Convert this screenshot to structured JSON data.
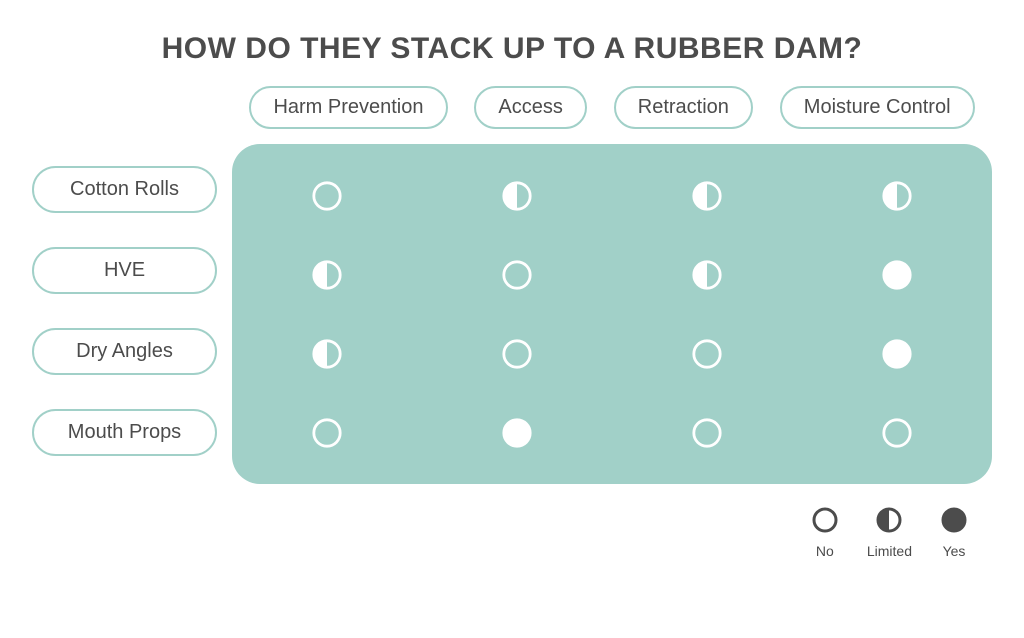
{
  "title": "HOW DO THEY STACK UP TO A RUBBER DAM?",
  "title_color": "#4c4c4c",
  "title_fontsize": 30,
  "comparison": {
    "type": "table",
    "panel_color": "#a1d0c8",
    "panel_radius": 28,
    "column_header_border": "#a1d0c8",
    "column_header_text": "#4c4c4c",
    "column_header_fontsize": 20,
    "row_header_border": "#a1d0c8",
    "row_header_text": "#4c4c4c",
    "row_header_fontsize": 20,
    "columns": [
      "Harm Prevention",
      "Access",
      "Retraction",
      "Moisture Control"
    ],
    "rows": [
      "Cotton Rolls",
      "HVE",
      "Dry Angles",
      "Mouth Props"
    ],
    "values": [
      [
        "no",
        "limited",
        "limited",
        "limited"
      ],
      [
        "limited",
        "no",
        "limited",
        "yes"
      ],
      [
        "limited",
        "no",
        "no",
        "yes"
      ],
      [
        "no",
        "yes",
        "no",
        "no"
      ]
    ],
    "circle": {
      "radius": 14,
      "stroke_width": 3,
      "stroke_color": "#ffffff",
      "fill_yes": "#ffffff",
      "fill_no": "none"
    }
  },
  "legend": {
    "items": [
      {
        "value": "no",
        "label": "No"
      },
      {
        "value": "limited",
        "label": "Limited"
      },
      {
        "value": "yes",
        "label": "Yes"
      }
    ],
    "circle": {
      "radius": 11,
      "stroke_width": 3,
      "stroke_color": "#4c4c4c",
      "fill_color": "#4c4c4c"
    },
    "label_color": "#4c4c4c",
    "label_fontsize": 14
  }
}
